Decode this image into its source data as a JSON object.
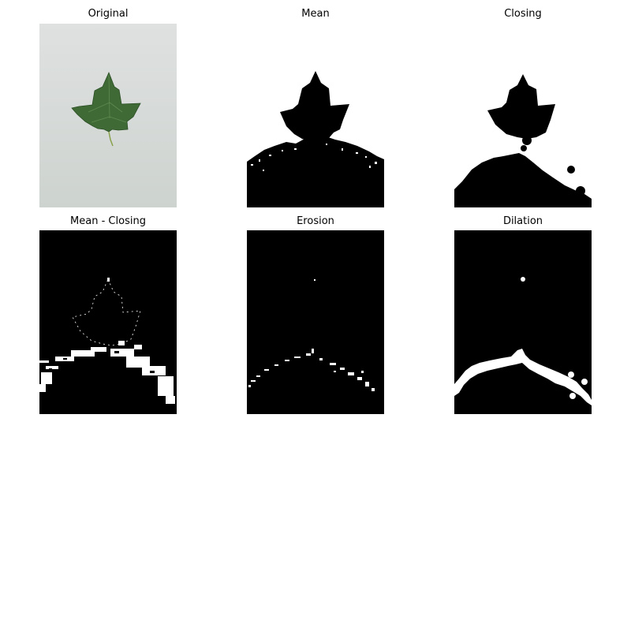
{
  "figure": {
    "panels": [
      {
        "id": "original",
        "title": "Original",
        "image": "leaf-photo"
      },
      {
        "id": "mean",
        "title": "Mean",
        "image": "binary-mask"
      },
      {
        "id": "closing",
        "title": "Closing",
        "image": "binary-mask"
      },
      {
        "id": "mean-closing",
        "title": "Mean - Closing",
        "image": "binary-mask"
      },
      {
        "id": "erosion",
        "title": "Erosion",
        "image": "binary-mask"
      },
      {
        "id": "dilation",
        "title": "Dilation",
        "image": "binary-mask"
      }
    ]
  },
  "colors": {
    "leaf": "#3f6a35",
    "paper": "#d4d8d6",
    "foreground": "#000000",
    "background_mask": "#ffffff"
  }
}
